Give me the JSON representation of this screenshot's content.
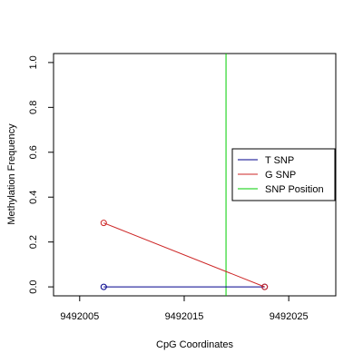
{
  "chart_data": {
    "type": "line",
    "title": "",
    "xlabel": "CpG Coordinates",
    "ylabel": "Methylation Frequency",
    "xlim": [
      9492002.5,
      9492029.5
    ],
    "ylim": [
      -0.04,
      1.04
    ],
    "x_ticks": [
      {
        "value": 9492005,
        "label": "9492005"
      },
      {
        "value": 9492015,
        "label": "9492015"
      },
      {
        "value": 9492025,
        "label": "9492025"
      }
    ],
    "y_ticks": [
      {
        "value": 0.0,
        "label": "0.0"
      },
      {
        "value": 0.2,
        "label": "0.2"
      },
      {
        "value": 0.4,
        "label": "0.4"
      },
      {
        "value": 0.6,
        "label": "0.6"
      },
      {
        "value": 0.8,
        "label": "0.8"
      },
      {
        "value": 1.0,
        "label": "1.0"
      }
    ],
    "series": [
      {
        "name": "T SNP",
        "color": "#00008b",
        "x": [
          9492007.3,
          9492022.7
        ],
        "y": [
          0.0,
          0.0
        ]
      },
      {
        "name": "G SNP",
        "color": "#cd2626",
        "x": [
          9492007.3,
          9492022.7
        ],
        "y": [
          0.285,
          0.0
        ]
      }
    ],
    "snp_position": {
      "name": "SNP Position",
      "color": "#00cd00",
      "x": 9492019.0
    },
    "legend": {
      "placement": "right",
      "entries": [
        {
          "label": "T SNP",
          "color": "#00008b"
        },
        {
          "label": "G SNP",
          "color": "#cd2626"
        },
        {
          "label": "SNP Position",
          "color": "#00cd00"
        }
      ]
    },
    "grid": false
  }
}
